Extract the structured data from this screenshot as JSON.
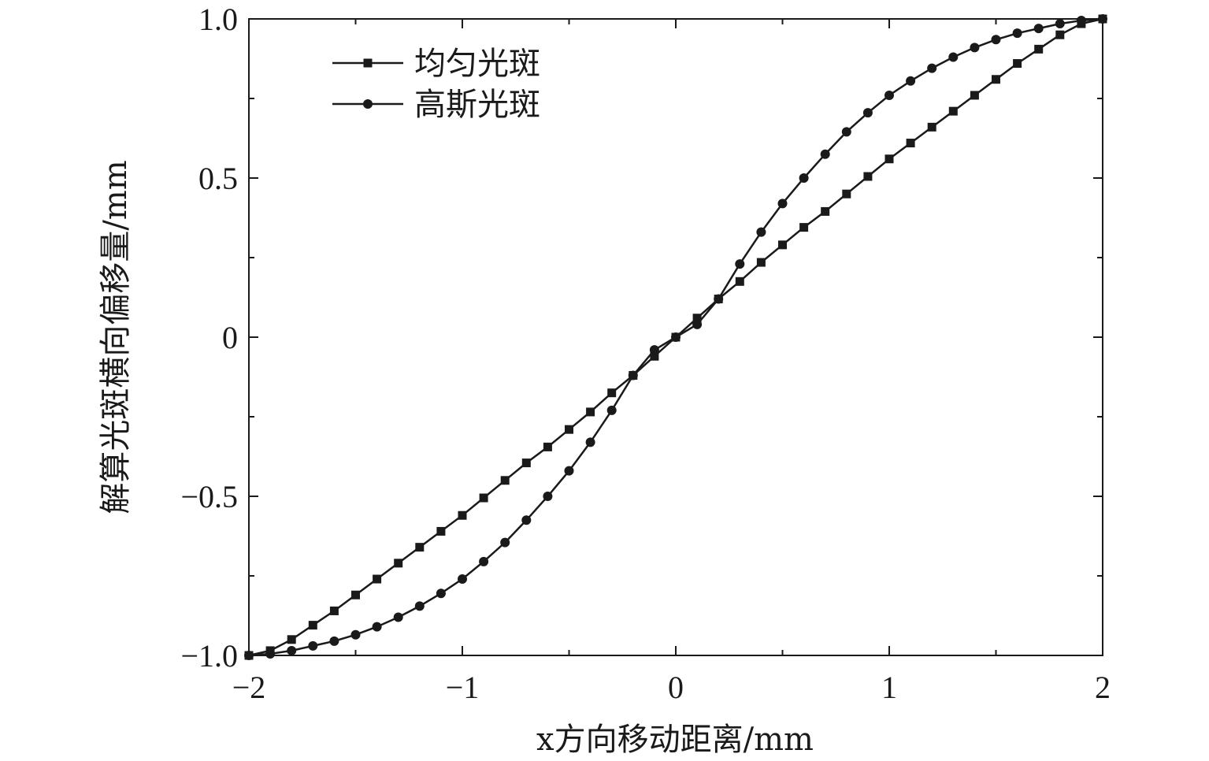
{
  "chart_data": {
    "type": "line",
    "xlabel": "x方向移动距离/mm",
    "ylabel": "解算光斑横向偏移量/mm",
    "xlim": [
      -2,
      2
    ],
    "ylim": [
      -1,
      1
    ],
    "x_ticks": [
      -2,
      -1,
      0,
      1,
      2
    ],
    "x_tick_labels": [
      "−2",
      "−1",
      "0",
      "1",
      "2"
    ],
    "x_minor_ticks": [
      -1.5,
      -0.5,
      0.5,
      1.5
    ],
    "y_ticks": [
      -1,
      -0.5,
      0,
      0.5,
      1
    ],
    "y_tick_labels": [
      "−1.0",
      "−0.5",
      "0",
      "0.5",
      "1.0"
    ],
    "y_minor_ticks": [
      -0.75,
      -0.25,
      0.25,
      0.75
    ],
    "grid": false,
    "legend_position": "top-left",
    "series": [
      {
        "name": "均匀光斑",
        "marker": "square",
        "color": "#1a1a1a",
        "x": [
          -2.0,
          -1.9,
          -1.8,
          -1.7,
          -1.6,
          -1.5,
          -1.4,
          -1.3,
          -1.2,
          -1.1,
          -1.0,
          -0.9,
          -0.8,
          -0.7,
          -0.6,
          -0.5,
          -0.4,
          -0.3,
          -0.2,
          -0.1,
          0.0,
          0.1,
          0.2,
          0.3,
          0.4,
          0.5,
          0.6,
          0.7,
          0.8,
          0.9,
          1.0,
          1.1,
          1.2,
          1.3,
          1.4,
          1.5,
          1.6,
          1.7,
          1.8,
          1.9,
          2.0
        ],
        "y": [
          -1.0,
          -0.985,
          -0.95,
          -0.905,
          -0.86,
          -0.81,
          -0.76,
          -0.71,
          -0.66,
          -0.61,
          -0.56,
          -0.505,
          -0.45,
          -0.395,
          -0.345,
          -0.29,
          -0.235,
          -0.175,
          -0.12,
          -0.06,
          0.0,
          0.06,
          0.12,
          0.175,
          0.235,
          0.29,
          0.345,
          0.395,
          0.45,
          0.505,
          0.56,
          0.61,
          0.66,
          0.71,
          0.76,
          0.81,
          0.86,
          0.905,
          0.95,
          0.985,
          1.0
        ]
      },
      {
        "name": "高斯光斑",
        "marker": "circle",
        "color": "#1a1a1a",
        "x": [
          -2.0,
          -1.9,
          -1.8,
          -1.7,
          -1.6,
          -1.5,
          -1.4,
          -1.3,
          -1.2,
          -1.1,
          -1.0,
          -0.9,
          -0.8,
          -0.7,
          -0.6,
          -0.5,
          -0.4,
          -0.3,
          -0.2,
          -0.1,
          0.0,
          0.1,
          0.2,
          0.3,
          0.4,
          0.5,
          0.6,
          0.7,
          0.8,
          0.9,
          1.0,
          1.1,
          1.2,
          1.3,
          1.4,
          1.5,
          1.6,
          1.7,
          1.8,
          1.9,
          2.0
        ],
        "y": [
          -1.0,
          -0.995,
          -0.985,
          -0.97,
          -0.955,
          -0.935,
          -0.91,
          -0.88,
          -0.845,
          -0.805,
          -0.76,
          -0.705,
          -0.645,
          -0.575,
          -0.5,
          -0.42,
          -0.33,
          -0.23,
          -0.12,
          -0.04,
          0.0,
          0.04,
          0.12,
          0.23,
          0.33,
          0.42,
          0.5,
          0.575,
          0.645,
          0.705,
          0.76,
          0.805,
          0.845,
          0.88,
          0.91,
          0.935,
          0.955,
          0.97,
          0.985,
          0.995,
          1.0
        ]
      }
    ]
  }
}
